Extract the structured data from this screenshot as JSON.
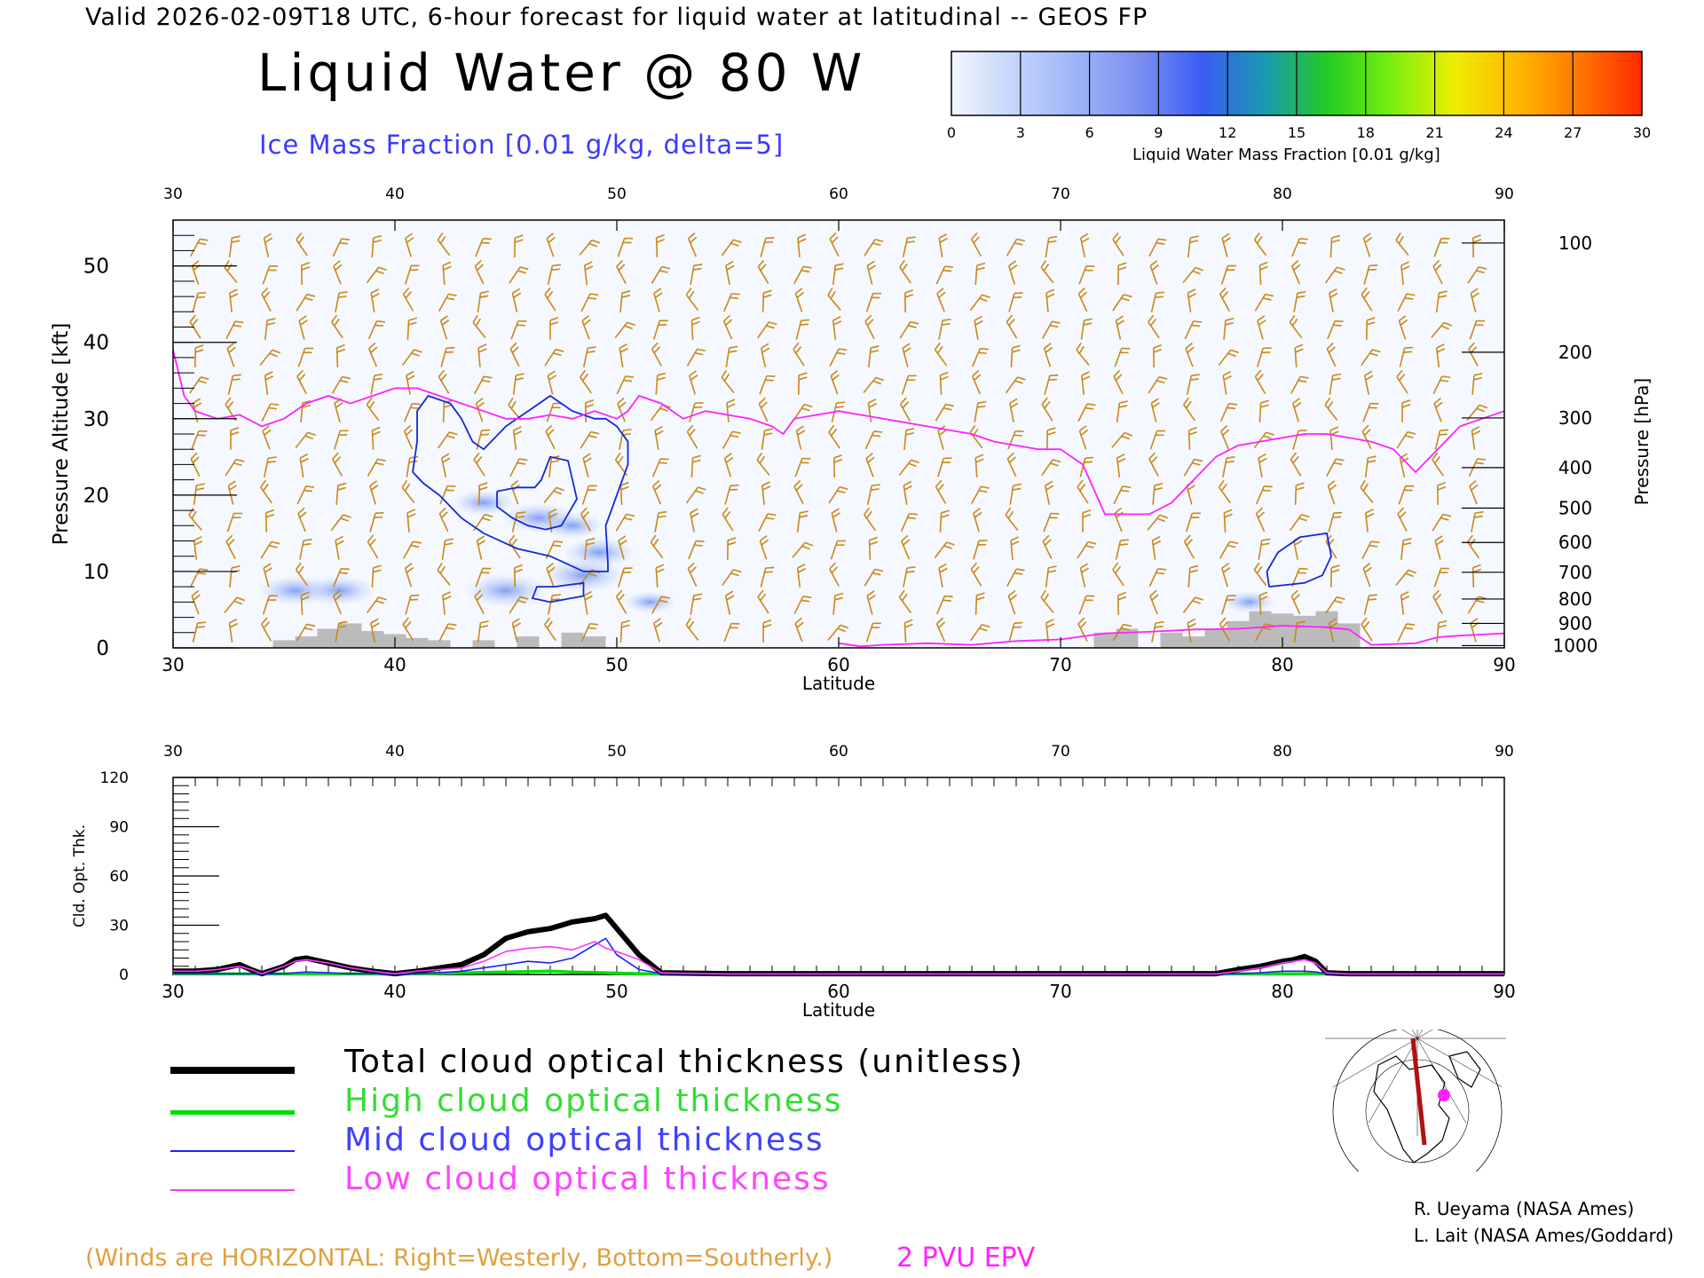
{
  "header": {
    "valid_line": "Valid 2026-02-09T18 UTC, 6-hour forecast for liquid water at latitudinal -- GEOS FP"
  },
  "title": "Liquid Water @ 80 W",
  "subtitle": "Ice Mass Fraction [0.01 g/kg, delta=5]",
  "colorbar": {
    "label": "Liquid Water Mass Fraction [0.01 g/kg]",
    "ticks": [
      "0",
      "3",
      "6",
      "9",
      "12",
      "15",
      "18",
      "21",
      "24",
      "27",
      "30"
    ],
    "colors": [
      "#f4f7ff",
      "#c3d4fb",
      "#9cb4f7",
      "#7a8ff0",
      "#3a5cf5",
      "#1a9ab0",
      "#22cc22",
      "#77ee11",
      "#eeee00",
      "#ffb800",
      "#ff7700",
      "#ff2a00"
    ]
  },
  "footer": {
    "winds_note": "(Winds are HORIZONTAL: Right=Westerly, Bottom=Southerly.)",
    "pvu_label": "2 PVU EPV",
    "credit_1": "R. Ueyama (NASA Ames)",
    "credit_2": "L. Lait (NASA Ames/Goddard)"
  },
  "legend": [
    {
      "label": "Total cloud optical thickness (unitless)",
      "color": "#000000"
    },
    {
      "label": "High cloud optical thickness",
      "color": "#00dd00"
    },
    {
      "label": "Mid cloud optical thickness",
      "color": "#2020ff"
    },
    {
      "label": "Low cloud optical thickness",
      "color": "#ff33ff"
    }
  ],
  "chart_data": [
    {
      "type": "heatmap",
      "xlabel": "Latitude",
      "ylabel": "Pressure Altitude [kft]",
      "y2label": "Pressure [hPa]",
      "xlim": [
        30,
        90
      ],
      "ylim": [
        0,
        56
      ],
      "x_ticks": [
        "30",
        "40",
        "50",
        "60",
        "70",
        "80",
        "90"
      ],
      "y_ticks": [
        "0",
        "10",
        "20",
        "30",
        "40",
        "50"
      ],
      "y2_ticks": [
        {
          "label": "100",
          "kft": 53.0
        },
        {
          "label": "200",
          "kft": 38.7
        },
        {
          "label": "300",
          "kft": 30.1
        },
        {
          "label": "400",
          "kft": 23.6
        },
        {
          "label": "500",
          "kft": 18.3
        },
        {
          "label": "600",
          "kft": 13.8
        },
        {
          "label": "700",
          "kft": 9.9
        },
        {
          "label": "800",
          "kft": 6.4
        },
        {
          "label": "900",
          "kft": 3.2
        },
        {
          "label": "1000",
          "kft": 0.3
        }
      ],
      "pv2_line": [
        [
          30,
          39
        ],
        [
          30.5,
          33
        ],
        [
          31,
          31
        ],
        [
          32,
          30
        ],
        [
          33,
          30.5
        ],
        [
          34,
          29
        ],
        [
          35,
          30
        ],
        [
          36,
          32
        ],
        [
          37,
          33
        ],
        [
          38,
          32
        ],
        [
          39,
          33
        ],
        [
          40,
          34
        ],
        [
          41,
          34
        ],
        [
          42,
          33
        ],
        [
          43,
          32
        ],
        [
          44,
          31
        ],
        [
          45,
          30
        ],
        [
          46,
          30
        ],
        [
          47,
          30.5
        ],
        [
          48,
          30
        ],
        [
          49,
          31
        ],
        [
          50,
          30
        ],
        [
          50.5,
          31
        ],
        [
          51,
          33
        ],
        [
          52,
          32
        ],
        [
          53,
          30
        ],
        [
          54,
          31
        ],
        [
          55,
          30.5
        ],
        [
          56,
          30
        ],
        [
          57,
          29
        ],
        [
          57.5,
          28
        ],
        [
          58,
          30
        ],
        [
          59,
          30.5
        ],
        [
          60,
          31
        ],
        [
          61,
          30.5
        ],
        [
          62,
          30
        ],
        [
          63,
          29.5
        ],
        [
          64,
          29
        ],
        [
          65,
          28.5
        ],
        [
          66,
          28
        ],
        [
          67,
          27
        ],
        [
          68,
          26.5
        ],
        [
          69,
          26
        ],
        [
          70,
          26
        ],
        [
          71,
          24
        ],
        [
          72,
          17.5
        ],
        [
          73,
          17.5
        ],
        [
          74,
          17.5
        ],
        [
          75,
          19
        ],
        [
          76,
          22
        ],
        [
          77,
          25
        ],
        [
          78,
          26.5
        ],
        [
          79,
          27
        ],
        [
          80,
          27.5
        ],
        [
          81,
          28
        ],
        [
          82,
          28
        ],
        [
          83,
          27.5
        ],
        [
          84,
          27
        ],
        [
          85,
          26
        ],
        [
          86,
          23
        ],
        [
          87,
          26
        ],
        [
          88,
          29
        ],
        [
          89,
          30
        ],
        [
          90,
          31
        ]
      ],
      "pv2_low_line": [
        [
          60,
          0.6
        ],
        [
          61,
          0.2
        ],
        [
          62,
          0.4
        ],
        [
          64,
          0.6
        ],
        [
          66,
          0.4
        ],
        [
          68,
          0.9
        ],
        [
          70,
          1.1
        ],
        [
          72,
          1.9
        ],
        [
          74,
          2.1
        ],
        [
          76,
          2.4
        ],
        [
          78,
          2.5
        ],
        [
          80,
          2.9
        ],
        [
          82,
          2.7
        ],
        [
          83,
          2.4
        ],
        [
          84,
          0.4
        ],
        [
          86,
          0.6
        ],
        [
          87,
          1.4
        ],
        [
          88,
          1.6
        ],
        [
          90,
          1.9
        ]
      ],
      "ice_contours": [
        [
          [
            40.8,
            23
          ],
          [
            41,
            27
          ],
          [
            41,
            31
          ],
          [
            41.5,
            33
          ],
          [
            42.5,
            32
          ],
          [
            43,
            30
          ],
          [
            43.5,
            27
          ],
          [
            44,
            26
          ],
          [
            45,
            29
          ],
          [
            45.5,
            30
          ],
          [
            46,
            31
          ],
          [
            47,
            33
          ],
          [
            48,
            31
          ],
          [
            49,
            30
          ],
          [
            49.5,
            30
          ],
          [
            50,
            29
          ],
          [
            50.5,
            27
          ],
          [
            50.5,
            24
          ],
          [
            50,
            20
          ],
          [
            49.5,
            16
          ],
          [
            49.6,
            11
          ],
          [
            49.6,
            10
          ],
          [
            48.5,
            10
          ],
          [
            47,
            12
          ],
          [
            45.5,
            13
          ],
          [
            44,
            15
          ],
          [
            43,
            17
          ],
          [
            42,
            20
          ],
          [
            41.3,
            21.5
          ],
          [
            40.8,
            23
          ]
        ],
        [
          [
            44.6,
            20.5
          ],
          [
            45.5,
            21
          ],
          [
            46.3,
            21
          ],
          [
            46.6,
            22
          ],
          [
            47,
            25
          ],
          [
            47.8,
            24.5
          ],
          [
            48,
            22
          ],
          [
            48.2,
            19.5
          ],
          [
            47.5,
            16
          ],
          [
            46.8,
            15.5
          ],
          [
            46,
            16
          ],
          [
            45.3,
            17
          ],
          [
            44.6,
            18.5
          ],
          [
            44.6,
            20.5
          ]
        ],
        [
          [
            47,
            6
          ],
          [
            48.5,
            6.8
          ],
          [
            48.5,
            8.5
          ],
          [
            47.2,
            8
          ],
          [
            46.4,
            8
          ],
          [
            46.2,
            6.5
          ],
          [
            47,
            6
          ]
        ],
        [
          [
            79.4,
            8
          ],
          [
            79.3,
            10
          ],
          [
            79.8,
            12.5
          ],
          [
            80.8,
            14.5
          ],
          [
            82,
            15
          ],
          [
            82.2,
            12
          ],
          [
            81.8,
            9.5
          ],
          [
            81,
            8.5
          ],
          [
            79.4,
            8
          ]
        ]
      ],
      "liquid_blobs": [
        {
          "lat": 35.5,
          "kft": 7.5,
          "value": 5
        },
        {
          "lat": 37.5,
          "kft": 7.5,
          "value": 5
        },
        {
          "lat": 44,
          "kft": 19,
          "value": 4
        },
        {
          "lat": 46.5,
          "kft": 17,
          "value": 5
        },
        {
          "lat": 45,
          "kft": 7.5,
          "value": 6
        },
        {
          "lat": 48.5,
          "kft": 9.5,
          "value": 6
        },
        {
          "lat": 49.2,
          "kft": 12.5,
          "value": 5
        },
        {
          "lat": 48,
          "kft": 16,
          "value": 4
        },
        {
          "lat": 51.5,
          "kft": 6,
          "value": 3
        },
        {
          "lat": 78.5,
          "kft": 6,
          "value": 3
        }
      ],
      "terrain": [
        [
          35,
          1
        ],
        [
          36,
          1.5
        ],
        [
          37,
          2.5
        ],
        [
          38,
          3.2
        ],
        [
          39,
          2.2
        ],
        [
          40,
          1.8
        ],
        [
          41,
          1.3
        ],
        [
          42,
          1.0
        ],
        [
          44,
          1.0
        ],
        [
          46,
          1.5
        ],
        [
          48,
          2.0
        ],
        [
          49,
          1.5
        ],
        [
          72,
          2.0
        ],
        [
          73,
          2.5
        ],
        [
          75,
          2.0
        ],
        [
          76,
          1.5
        ],
        [
          77,
          2.5
        ],
        [
          78,
          3.5
        ],
        [
          79,
          4.8
        ],
        [
          80,
          4.5
        ],
        [
          81,
          4.2
        ],
        [
          82,
          4.8
        ],
        [
          83,
          3.2
        ]
      ]
    },
    {
      "type": "line",
      "xlabel": "Latitude",
      "ylabel": "Cld. Opt. Thk.",
      "xlim": [
        30,
        90
      ],
      "ylim": [
        0,
        120
      ],
      "x_ticks": [
        "30",
        "40",
        "50",
        "60",
        "70",
        "80",
        "90"
      ],
      "y_ticks": [
        "0",
        "30",
        "60",
        "90",
        "120"
      ],
      "x": [
        30,
        31,
        32,
        33,
        33.5,
        34,
        35,
        35.5,
        36,
        37,
        38,
        39,
        40,
        41,
        42,
        43,
        44,
        45,
        46,
        47,
        48,
        49,
        49.5,
        50,
        51,
        52,
        55,
        60,
        70,
        77,
        78,
        79,
        80,
        80.5,
        81,
        81.5,
        82,
        83,
        85,
        90
      ],
      "series": [
        {
          "name": "Total cloud optical thickness (unitless)",
          "values": [
            2,
            2,
            3,
            6,
            3,
            0.5,
            5,
            9,
            10,
            7,
            4,
            2,
            0.5,
            2,
            4,
            6,
            12,
            22,
            26,
            28,
            32,
            34,
            36,
            28,
            12,
            1,
            0.5,
            0.5,
            0.5,
            0.5,
            3,
            5,
            8,
            9,
            11,
            8,
            1,
            0.5,
            0.5,
            0.5
          ]
        },
        {
          "name": "High cloud optical thickness",
          "values": [
            0.3,
            0.3,
            0.3,
            0.3,
            0.3,
            0.3,
            0.3,
            0.3,
            0.3,
            0.3,
            0.3,
            0.3,
            0.3,
            0.5,
            0.8,
            1,
            1.2,
            1.5,
            1.8,
            2,
            1.5,
            1.2,
            1,
            0.8,
            0.5,
            0.3,
            0.3,
            0.3,
            0.3,
            0.3,
            0.3,
            0.3,
            0.3,
            0.3,
            0.3,
            0.3,
            0.3,
            0.3,
            0.3,
            0.3
          ]
        },
        {
          "name": "Mid cloud optical thickness",
          "values": [
            0.5,
            0.5,
            0.5,
            0.5,
            0.5,
            0.3,
            0.5,
            1,
            1.5,
            1,
            0.5,
            0.5,
            0.3,
            0.5,
            1,
            2,
            4,
            6,
            8,
            7,
            10,
            18,
            22,
            12,
            3,
            0.5,
            0.3,
            0.3,
            0.3,
            0.3,
            0.5,
            1,
            2,
            2,
            2,
            1.5,
            0.5,
            0.3,
            0.3,
            0.3
          ]
        },
        {
          "name": "Low cloud optical thickness",
          "values": [
            2,
            2,
            3,
            5,
            3,
            0.5,
            5,
            8,
            9,
            7,
            4,
            2,
            0.5,
            2,
            3,
            4,
            8,
            14,
            16,
            17,
            15,
            20,
            16,
            14,
            9,
            1,
            0.3,
            0.3,
            0.3,
            0.3,
            2,
            4,
            7,
            8,
            9,
            7,
            1,
            0.3,
            0.3,
            0.3
          ]
        }
      ]
    }
  ]
}
